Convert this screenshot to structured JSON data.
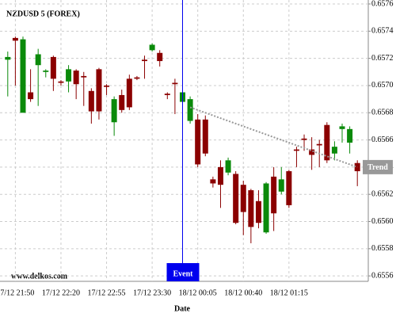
{
  "chart_data": {
    "type": "candlestick",
    "title": "NZDUSD 5 (FOREX)",
    "watermark": "www.delkos.com",
    "x_label": "Date",
    "categories": [
      null,
      "17/12 21:50",
      null,
      null,
      null,
      null,
      null,
      "17/12 22:20",
      null,
      null,
      null,
      null,
      null,
      "17/12 22:55",
      null,
      null,
      null,
      null,
      null,
      "17/12 23:30",
      null,
      null,
      null,
      null,
      null,
      "18/12 00:05",
      null,
      null,
      null,
      null,
      null,
      "18/12 00:40",
      null,
      null,
      null,
      null,
      null,
      "18/12 01:15",
      null,
      null,
      null,
      null,
      null,
      null,
      null,
      null,
      null
    ],
    "open": [
      0.65719,
      0.65735,
      0.6568,
      0.65695,
      0.65715,
      0.6571,
      0.65721,
      0.65703,
      0.65703,
      0.65711,
      0.65707,
      0.65696,
      0.65712,
      0.657,
      0.65673,
      0.65693,
      0.65705,
      0.65706,
      0.65719,
      0.65726,
      0.65724,
      0.65694,
      0.65702,
      0.65688,
      0.65674,
      0.65675,
      0.65675,
      0.65631,
      0.6564,
      0.65636,
      0.65635,
      0.65627,
      0.65623,
      0.65615,
      0.65592,
      0.65633,
      0.65622,
      0.65637,
      0.65653,
      0.65661,
      0.65653,
      0.65657,
      0.65671,
      0.6565,
      0.65668,
      0.65658,
      0.65643
    ],
    "high": [
      0.65725,
      0.65736,
      0.65736,
      0.65712,
      0.65727,
      0.65712,
      0.65722,
      0.65704,
      0.65715,
      0.65712,
      0.6571,
      0.65698,
      0.65713,
      0.65701,
      0.65692,
      0.65697,
      0.65708,
      0.65707,
      0.65722,
      0.65731,
      0.65726,
      0.65695,
      0.65705,
      0.65696,
      0.65692,
      0.65679,
      0.65678,
      0.65633,
      0.65645,
      0.65647,
      0.65637,
      0.6563,
      0.65624,
      0.65623,
      0.65629,
      0.6564,
      0.6564,
      0.65638,
      0.65655,
      0.65664,
      0.65662,
      0.6566,
      0.65673,
      0.65659,
      0.65672,
      0.6567,
      0.65645
    ],
    "low": [
      0.65692,
      0.657,
      0.6568,
      0.65688,
      0.65685,
      0.65706,
      0.65696,
      0.657,
      0.65695,
      0.6569,
      0.65685,
      0.65672,
      0.65675,
      0.65693,
      0.65663,
      0.6568,
      0.65682,
      0.65704,
      0.65705,
      0.65725,
      0.65714,
      0.6569,
      0.65679,
      0.65686,
      0.65672,
      0.6564,
      0.65648,
      0.65625,
      0.6561,
      0.65634,
      0.65598,
      0.6559,
      0.65584,
      0.65595,
      0.65591,
      0.65593,
      0.6562,
      0.6561,
      0.6564,
      0.65652,
      0.65638,
      0.6564,
      0.65643,
      0.65645,
      0.65658,
      0.6565,
      0.65626
    ],
    "close": [
      0.65721,
      0.65733,
      0.65734,
      0.6569,
      0.65723,
      0.65711,
      0.65705,
      0.65702,
      0.65712,
      0.65701,
      0.65706,
      0.65681,
      0.65681,
      0.65699,
      0.6569,
      0.65682,
      0.65684,
      0.65705,
      0.65718,
      0.6573,
      0.65718,
      0.65693,
      0.65701,
      0.65695,
      0.6569,
      0.65642,
      0.6565,
      0.65628,
      0.65627,
      0.65645,
      0.65599,
      0.65607,
      0.65596,
      0.65599,
      0.65628,
      0.65606,
      0.65631,
      0.65612,
      0.65652,
      0.6566,
      0.65649,
      0.65656,
      0.65645,
      0.65655,
      0.6567,
      0.65668,
      0.65637
    ],
    "up_color": "#0a8a0a",
    "down_color": "#8b0000",
    "ylim": [
      0.65556,
      0.6576
    ],
    "yticks": [
      0.6556,
      0.6558,
      {
        "value": 0.656,
        "label": "0.6560"
      },
      0.6562,
      0.6564,
      0.6566,
      0.6568,
      {
        "value": 0.657,
        "label": "0.6570"
      },
      0.6572,
      0.6574,
      0.6576
    ],
    "grid": true,
    "event": {
      "label": "Event",
      "index": 23,
      "color": "#0000ee"
    },
    "trend": {
      "label": "Trend",
      "start_index": 24,
      "end_index": 46,
      "values": [
        0.65684,
        0.6564
      ],
      "color": "#999999"
    }
  }
}
